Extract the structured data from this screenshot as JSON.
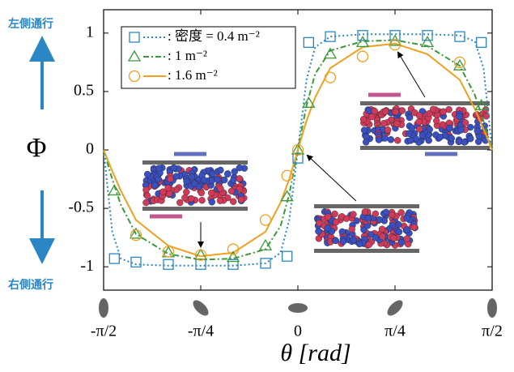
{
  "chart_data": {
    "type": "line-scatter",
    "ylabel": "Φ",
    "xlabel": "θ [rad]",
    "annotations": [
      "左側通行",
      "右側通行"
    ],
    "xlim": [
      -1.5708,
      1.5708
    ],
    "ylim": [
      -1.2,
      1.2
    ],
    "xticks": [
      {
        "value": -1.5708,
        "label": "-π/2"
      },
      {
        "value": -0.7854,
        "label": "-π/4"
      },
      0,
      {
        "value": 0.7854,
        "label": "π/4"
      },
      {
        "value": 1.5708,
        "label": "π/2"
      }
    ],
    "yticks": [
      -1,
      -0.5,
      0,
      0.5,
      1
    ],
    "series": [
      {
        "name": ": 密度 = 0.4 m⁻²",
        "color": "#2a86c4",
        "marker": "square",
        "dash": "2,3",
        "x": [
          -1.4835,
          -1.309,
          -1.0472,
          -0.7854,
          -0.5236,
          -0.2618,
          -0.0873,
          0,
          0.0873,
          0.2618,
          0.5236,
          0.7854,
          1.0472,
          1.309,
          1.4835
        ],
        "values": [
          -0.93,
          -0.96,
          -0.98,
          -0.98,
          -0.98,
          -0.97,
          -0.91,
          -0.07,
          0.92,
          0.97,
          0.98,
          0.98,
          0.98,
          0.97,
          0.92
        ],
        "fit_x": [
          -1.5708,
          -1.501,
          -1.4312,
          -1.309,
          -1.0472,
          -0.7854,
          -0.5236,
          -0.2618,
          -0.1396,
          -0.0698,
          0,
          0.0698,
          0.1396,
          0.2618,
          0.5236,
          0.7854,
          1.0472,
          1.309,
          1.4312,
          1.501,
          1.5708
        ],
        "fit_values": [
          0,
          -0.7,
          -0.93,
          -0.98,
          -0.99,
          -0.99,
          -0.99,
          -0.97,
          -0.88,
          -0.6,
          0,
          0.6,
          0.88,
          0.97,
          0.99,
          0.99,
          0.99,
          0.98,
          0.93,
          0.7,
          0
        ]
      },
      {
        "name": ": 1 m⁻²",
        "color": "#3a9a3a",
        "marker": "triangle",
        "dash": "7,3,2,3",
        "x": [
          -1.4835,
          -1.309,
          -1.0472,
          -0.7854,
          -0.5236,
          -0.2618,
          -0.0873,
          0,
          0.0873,
          0.2618,
          0.5236,
          0.7854,
          1.0472,
          1.309,
          1.4835
        ],
        "values": [
          -0.35,
          -0.72,
          -0.88,
          -0.9,
          -0.92,
          -0.82,
          -0.4,
          0,
          0.4,
          0.82,
          0.92,
          0.93,
          0.92,
          0.72,
          0.38
        ],
        "fit_x": [
          -1.5708,
          -1.501,
          -1.4312,
          -1.309,
          -1.0472,
          -0.7854,
          -0.5236,
          -0.2618,
          -0.1396,
          -0.0698,
          0,
          0.0698,
          0.1396,
          0.2618,
          0.5236,
          0.7854,
          1.0472,
          1.309,
          1.4312,
          1.501,
          1.5708
        ],
        "fit_values": [
          0,
          -0.25,
          -0.47,
          -0.72,
          -0.89,
          -0.94,
          -0.93,
          -0.85,
          -0.65,
          -0.38,
          0,
          0.38,
          0.65,
          0.85,
          0.93,
          0.94,
          0.89,
          0.72,
          0.47,
          0.25,
          0
        ]
      },
      {
        "name": ": 1.6 m⁻²",
        "color": "#f0a020",
        "marker": "circle",
        "dash": "",
        "x": [
          -1.309,
          -1.0472,
          -0.7854,
          -0.5236,
          -0.2618,
          -0.0873,
          0,
          0.2618,
          0.5236,
          0.7854,
          1.309
        ],
        "values": [
          -0.73,
          -0.87,
          -0.9,
          -0.85,
          -0.6,
          -0.22,
          0,
          0.62,
          0.8,
          0.9,
          0.75
        ],
        "fit_x": [
          -1.5708,
          -1.501,
          -1.4312,
          -1.309,
          -1.0472,
          -0.7854,
          -0.5236,
          -0.2618,
          -0.1396,
          -0.0698,
          0,
          0.0698,
          0.1396,
          0.2618,
          0.5236,
          0.7854,
          1.0472,
          1.309,
          1.4312,
          1.501,
          1.5708
        ],
        "fit_values": [
          0,
          -0.18,
          -0.35,
          -0.6,
          -0.82,
          -0.91,
          -0.88,
          -0.7,
          -0.45,
          -0.25,
          0,
          0.25,
          0.45,
          0.7,
          0.88,
          0.91,
          0.82,
          0.6,
          0.35,
          0.18,
          0
        ]
      }
    ]
  }
}
